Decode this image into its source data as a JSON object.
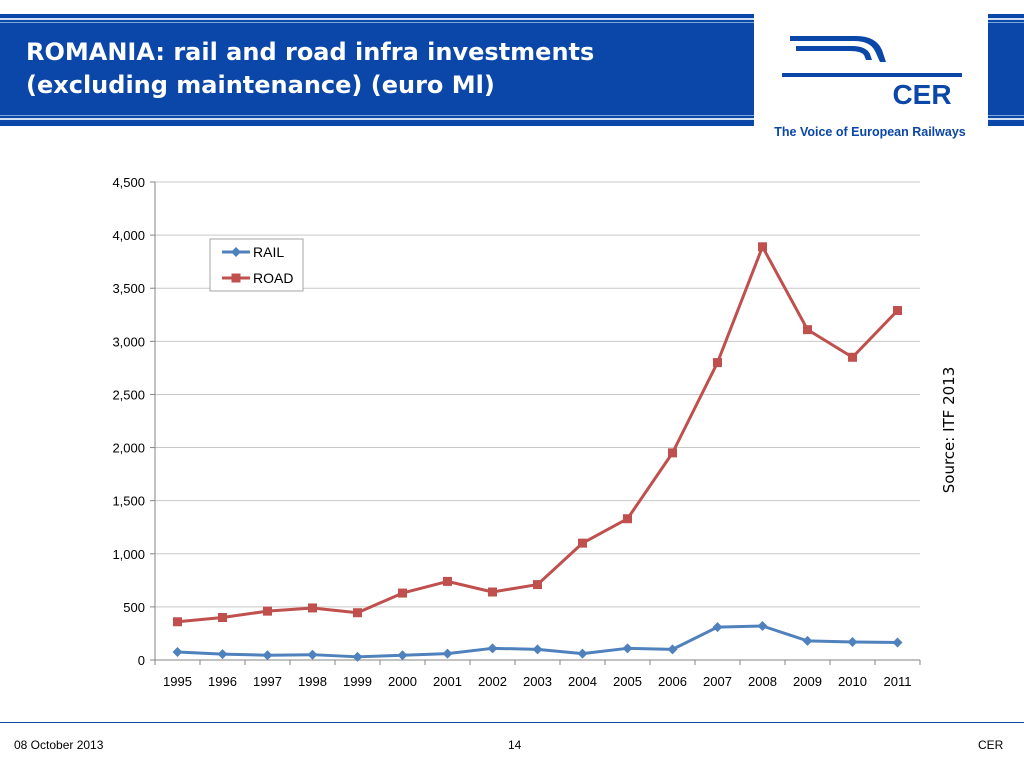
{
  "header": {
    "title_line1": "ROMANIA: rail and road infra investments",
    "title_line2": "(excluding maintenance) (euro Ml)",
    "logo_text": "CER",
    "tagline": "The Voice of European Railways"
  },
  "source_note": "Source: ITF 2013",
  "footer": {
    "date": "08 October 2013",
    "page": "14",
    "org": "CER"
  },
  "colors": {
    "banner": "#0a47a8",
    "rail": "#4f81bd",
    "road": "#c0504d"
  },
  "chart_data": {
    "type": "line",
    "x": [
      "1995",
      "1996",
      "1997",
      "1998",
      "1999",
      "2000",
      "2001",
      "2002",
      "2003",
      "2004",
      "2005",
      "2006",
      "2007",
      "2008",
      "2009",
      "2010",
      "2011"
    ],
    "series": [
      {
        "name": "RAIL",
        "values": [
          75,
          55,
          45,
          50,
          30,
          45,
          60,
          110,
          100,
          60,
          110,
          100,
          310,
          320,
          180,
          170,
          165
        ]
      },
      {
        "name": "ROAD",
        "values": [
          360,
          400,
          460,
          490,
          445,
          630,
          740,
          640,
          710,
          1100,
          1330,
          1950,
          2800,
          3890,
          3110,
          2850,
          3290
        ]
      }
    ],
    "ylim": [
      0,
      4500
    ],
    "yticks": [
      "0",
      "500",
      "1,000",
      "1,500",
      "2,000",
      "2,500",
      "3,000",
      "3,500",
      "4,000",
      "4,500"
    ],
    "ytick_values": [
      0,
      500,
      1000,
      1500,
      2000,
      2500,
      3000,
      3500,
      4000,
      4500
    ],
    "grid": true,
    "legend_position": "top-left"
  }
}
